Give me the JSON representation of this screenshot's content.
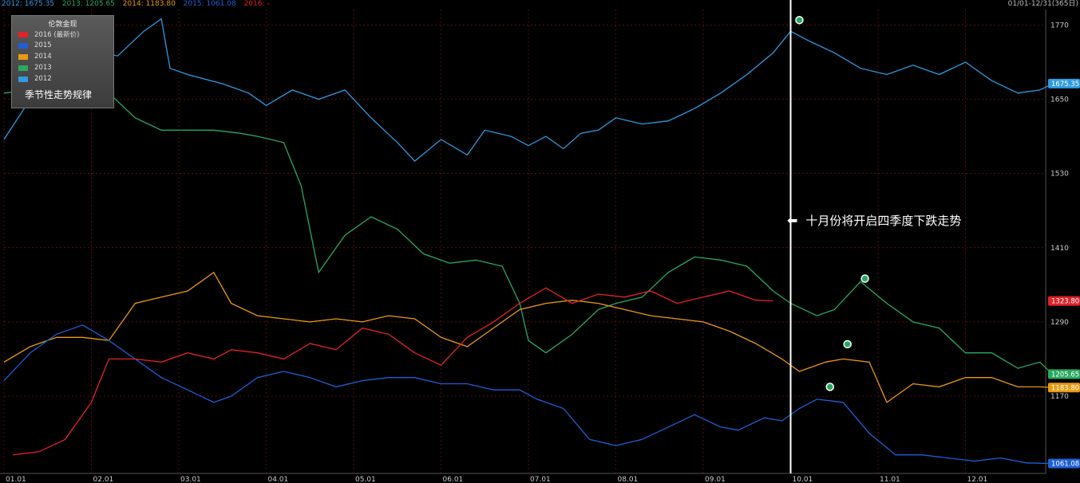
{
  "header": {
    "series_readouts": [
      {
        "label": "2012: 1675.35",
        "color": "#2f9be0"
      },
      {
        "label": "2013: 1205.65",
        "color": "#2aa860"
      },
      {
        "label": "2014: 1183.80",
        "color": "#e89a13"
      },
      {
        "label": "2015: 1061.08",
        "color": "#1f5fd6"
      },
      {
        "label": "2016: -",
        "color": "#e0222a"
      }
    ],
    "date_range": "01/01-12/31(365日)"
  },
  "legend": {
    "title": "伦敦金现",
    "items": [
      {
        "label": "2016 (最新价)",
        "color": "#e0222a"
      },
      {
        "label": "2015",
        "color": "#1f5fd6"
      },
      {
        "label": "2014",
        "color": "#e89a13"
      },
      {
        "label": "2013",
        "color": "#2aa860"
      },
      {
        "label": "2012",
        "color": "#2f9be0"
      }
    ],
    "note": "季节性走势规律"
  },
  "annotation": "十月份将开启四季度下跌走势",
  "chart_data": {
    "type": "line",
    "x_ticks": [
      "01.01",
      "02.01",
      "03.01",
      "04.01",
      "05.01",
      "06.01",
      "07.01",
      "08.01",
      "09.01",
      "10.01",
      "11.01",
      "12.01"
    ],
    "y_ticks": [
      1170,
      1290,
      1410,
      1530,
      1650,
      1770
    ],
    "ylim": [
      1045,
      1795
    ],
    "grid": true,
    "marker_month": 9.0,
    "series": [
      {
        "name": "2012",
        "color": "#2f9be0",
        "last_label": "1675.35",
        "points": [
          [
            0,
            1585
          ],
          [
            0.3,
            1650
          ],
          [
            0.7,
            1690
          ],
          [
            1.0,
            1730
          ],
          [
            1.3,
            1720
          ],
          [
            1.6,
            1760
          ],
          [
            1.8,
            1780
          ],
          [
            1.9,
            1700
          ],
          [
            2.1,
            1690
          ],
          [
            2.5,
            1675
          ],
          [
            2.8,
            1660
          ],
          [
            3.0,
            1640
          ],
          [
            3.3,
            1665
          ],
          [
            3.6,
            1650
          ],
          [
            3.9,
            1665
          ],
          [
            4.2,
            1620
          ],
          [
            4.5,
            1580
          ],
          [
            4.7,
            1550
          ],
          [
            5.0,
            1585
          ],
          [
            5.3,
            1560
          ],
          [
            5.5,
            1600
          ],
          [
            5.8,
            1590
          ],
          [
            6.0,
            1575
          ],
          [
            6.2,
            1590
          ],
          [
            6.4,
            1570
          ],
          [
            6.6,
            1595
          ],
          [
            6.8,
            1600
          ],
          [
            7.0,
            1620
          ],
          [
            7.3,
            1610
          ],
          [
            7.6,
            1615
          ],
          [
            7.9,
            1635
          ],
          [
            8.2,
            1660
          ],
          [
            8.5,
            1690
          ],
          [
            8.8,
            1725
          ],
          [
            9.0,
            1760
          ],
          [
            9.2,
            1745
          ],
          [
            9.5,
            1725
          ],
          [
            9.8,
            1700
          ],
          [
            10.1,
            1690
          ],
          [
            10.4,
            1705
          ],
          [
            10.7,
            1690
          ],
          [
            11.0,
            1710
          ],
          [
            11.3,
            1680
          ],
          [
            11.6,
            1660
          ],
          [
            11.85,
            1665
          ],
          [
            12.0,
            1675
          ]
        ]
      },
      {
        "name": "2013",
        "color": "#2aa860",
        "last_label": "1205.65",
        "points": [
          [
            0,
            1660
          ],
          [
            0.3,
            1665
          ],
          [
            0.6,
            1670
          ],
          [
            0.9,
            1670
          ],
          [
            1.2,
            1660
          ],
          [
            1.5,
            1620
          ],
          [
            1.8,
            1600
          ],
          [
            2.1,
            1600
          ],
          [
            2.4,
            1600
          ],
          [
            2.7,
            1595
          ],
          [
            2.9,
            1590
          ],
          [
            3.2,
            1580
          ],
          [
            3.4,
            1510
          ],
          [
            3.6,
            1370
          ],
          [
            3.9,
            1430
          ],
          [
            4.2,
            1460
          ],
          [
            4.5,
            1440
          ],
          [
            4.8,
            1400
          ],
          [
            5.1,
            1385
          ],
          [
            5.4,
            1390
          ],
          [
            5.7,
            1380
          ],
          [
            5.9,
            1320
          ],
          [
            6.0,
            1260
          ],
          [
            6.2,
            1240
          ],
          [
            6.5,
            1270
          ],
          [
            6.8,
            1310
          ],
          [
            7.0,
            1320
          ],
          [
            7.3,
            1330
          ],
          [
            7.6,
            1370
          ],
          [
            7.9,
            1395
          ],
          [
            8.2,
            1390
          ],
          [
            8.5,
            1380
          ],
          [
            8.8,
            1340
          ],
          [
            9.0,
            1320
          ],
          [
            9.3,
            1300
          ],
          [
            9.5,
            1310
          ],
          [
            9.8,
            1355
          ],
          [
            10.1,
            1320
          ],
          [
            10.4,
            1290
          ],
          [
            10.7,
            1280
          ],
          [
            11.0,
            1240
          ],
          [
            11.3,
            1240
          ],
          [
            11.6,
            1215
          ],
          [
            11.85,
            1225
          ],
          [
            12.0,
            1205
          ]
        ]
      },
      {
        "name": "2014",
        "color": "#e89a13",
        "last_label": "1183.80",
        "points": [
          [
            0,
            1225
          ],
          [
            0.3,
            1250
          ],
          [
            0.6,
            1265
          ],
          [
            0.9,
            1265
          ],
          [
            1.2,
            1260
          ],
          [
            1.5,
            1320
          ],
          [
            1.8,
            1330
          ],
          [
            2.1,
            1340
          ],
          [
            2.4,
            1370
          ],
          [
            2.6,
            1320
          ],
          [
            2.9,
            1300
          ],
          [
            3.2,
            1295
          ],
          [
            3.5,
            1290
          ],
          [
            3.8,
            1295
          ],
          [
            4.1,
            1290
          ],
          [
            4.4,
            1300
          ],
          [
            4.7,
            1295
          ],
          [
            5.0,
            1265
          ],
          [
            5.3,
            1250
          ],
          [
            5.6,
            1280
          ],
          [
            5.9,
            1310
          ],
          [
            6.2,
            1320
          ],
          [
            6.5,
            1325
          ],
          [
            6.8,
            1320
          ],
          [
            7.1,
            1310
          ],
          [
            7.4,
            1300
          ],
          [
            7.7,
            1295
          ],
          [
            8.0,
            1290
          ],
          [
            8.3,
            1275
          ],
          [
            8.6,
            1255
          ],
          [
            8.9,
            1230
          ],
          [
            9.1,
            1210
          ],
          [
            9.4,
            1225
          ],
          [
            9.6,
            1230
          ],
          [
            9.9,
            1225
          ],
          [
            10.1,
            1160
          ],
          [
            10.4,
            1190
          ],
          [
            10.7,
            1185
          ],
          [
            11.0,
            1200
          ],
          [
            11.3,
            1200
          ],
          [
            11.6,
            1185
          ],
          [
            11.85,
            1185
          ],
          [
            12.0,
            1184
          ]
        ]
      },
      {
        "name": "2015",
        "color": "#1f5fd6",
        "last_label": "1061.08",
        "points": [
          [
            0,
            1195
          ],
          [
            0.3,
            1240
          ],
          [
            0.6,
            1270
          ],
          [
            0.9,
            1285
          ],
          [
            1.2,
            1260
          ],
          [
            1.5,
            1230
          ],
          [
            1.8,
            1200
          ],
          [
            2.1,
            1180
          ],
          [
            2.4,
            1160
          ],
          [
            2.6,
            1170
          ],
          [
            2.9,
            1200
          ],
          [
            3.2,
            1210
          ],
          [
            3.5,
            1200
          ],
          [
            3.8,
            1185
          ],
          [
            4.1,
            1195
          ],
          [
            4.4,
            1200
          ],
          [
            4.7,
            1200
          ],
          [
            5.0,
            1190
          ],
          [
            5.3,
            1190
          ],
          [
            5.6,
            1180
          ],
          [
            5.9,
            1180
          ],
          [
            6.1,
            1165
          ],
          [
            6.4,
            1150
          ],
          [
            6.7,
            1100
          ],
          [
            7.0,
            1090
          ],
          [
            7.3,
            1100
          ],
          [
            7.6,
            1120
          ],
          [
            7.9,
            1140
          ],
          [
            8.2,
            1120
          ],
          [
            8.4,
            1115
          ],
          [
            8.7,
            1135
          ],
          [
            8.9,
            1130
          ],
          [
            9.1,
            1150
          ],
          [
            9.3,
            1165
          ],
          [
            9.6,
            1160
          ],
          [
            9.9,
            1110
          ],
          [
            10.2,
            1075
          ],
          [
            10.5,
            1075
          ],
          [
            10.8,
            1070
          ],
          [
            11.1,
            1065
          ],
          [
            11.4,
            1070
          ],
          [
            11.7,
            1062
          ],
          [
            12.0,
            1061
          ]
        ]
      },
      {
        "name": "2016",
        "color": "#e0222a",
        "points": [
          [
            0.1,
            1075
          ],
          [
            0.4,
            1080
          ],
          [
            0.7,
            1100
          ],
          [
            1.0,
            1160
          ],
          [
            1.2,
            1230
          ],
          [
            1.5,
            1230
          ],
          [
            1.8,
            1225
          ],
          [
            2.1,
            1240
          ],
          [
            2.4,
            1230
          ],
          [
            2.6,
            1245
          ],
          [
            2.9,
            1240
          ],
          [
            3.2,
            1230
          ],
          [
            3.5,
            1255
          ],
          [
            3.8,
            1245
          ],
          [
            4.1,
            1280
          ],
          [
            4.4,
            1270
          ],
          [
            4.7,
            1240
          ],
          [
            5.0,
            1220
          ],
          [
            5.3,
            1265
          ],
          [
            5.6,
            1290
          ],
          [
            5.9,
            1320
          ],
          [
            6.2,
            1345
          ],
          [
            6.5,
            1320
          ],
          [
            6.8,
            1335
          ],
          [
            7.1,
            1330
          ],
          [
            7.4,
            1340
          ],
          [
            7.7,
            1320
          ],
          [
            8.0,
            1330
          ],
          [
            8.3,
            1340
          ],
          [
            8.6,
            1325
          ],
          [
            8.8,
            1324
          ]
        ]
      }
    ],
    "extremes": [
      [
        9.1,
        1778,
        "#2aa860"
      ],
      [
        9.85,
        1360,
        "#2aa860"
      ],
      [
        9.65,
        1254,
        "#2aa860"
      ],
      [
        9.45,
        1185,
        "#2aa860"
      ]
    ]
  }
}
